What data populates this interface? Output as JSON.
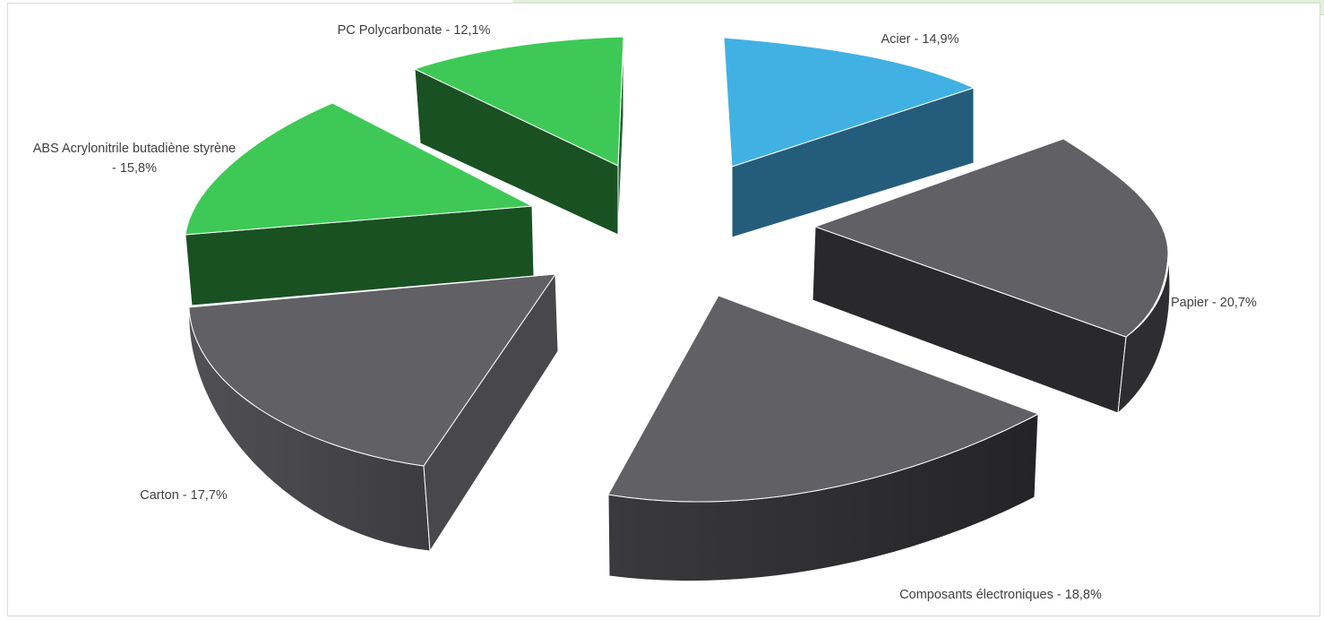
{
  "chart_data": {
    "type": "pie",
    "variant": "3d-exploded",
    "title": "",
    "slices": [
      {
        "label": "Acier",
        "value": 14.9,
        "text": "Acier - 14,9%",
        "color": "#41b1e3",
        "side_color": "#245d7b"
      },
      {
        "label": "Papier",
        "value": 20.7,
        "text": "Papier - 20,7%",
        "color": "#616065",
        "side_color": "#29292b"
      },
      {
        "label": "Composants électroniques",
        "value": 18.8,
        "text": "Composants électroniques - 18,8%",
        "color": "#616065",
        "side_color": "#343436"
      },
      {
        "label": "Carton",
        "value": 17.7,
        "text": "Carton - 17,7%",
        "color": "#616065",
        "side_color": "#48484c"
      },
      {
        "label": "ABS Acrylonitrile butadiène styrène",
        "value": 15.8,
        "text_line1": "ABS Acrylonitrile butadiène styrène",
        "text_line2": "- 15,8%",
        "color": "#3ec956",
        "side_color": "#195123"
      },
      {
        "label": "PC Polycarbonate",
        "value": 12.1,
        "text": "PC Polycarbonate - 12,1%",
        "color": "#3ec956",
        "side_color": "#195123"
      }
    ]
  }
}
